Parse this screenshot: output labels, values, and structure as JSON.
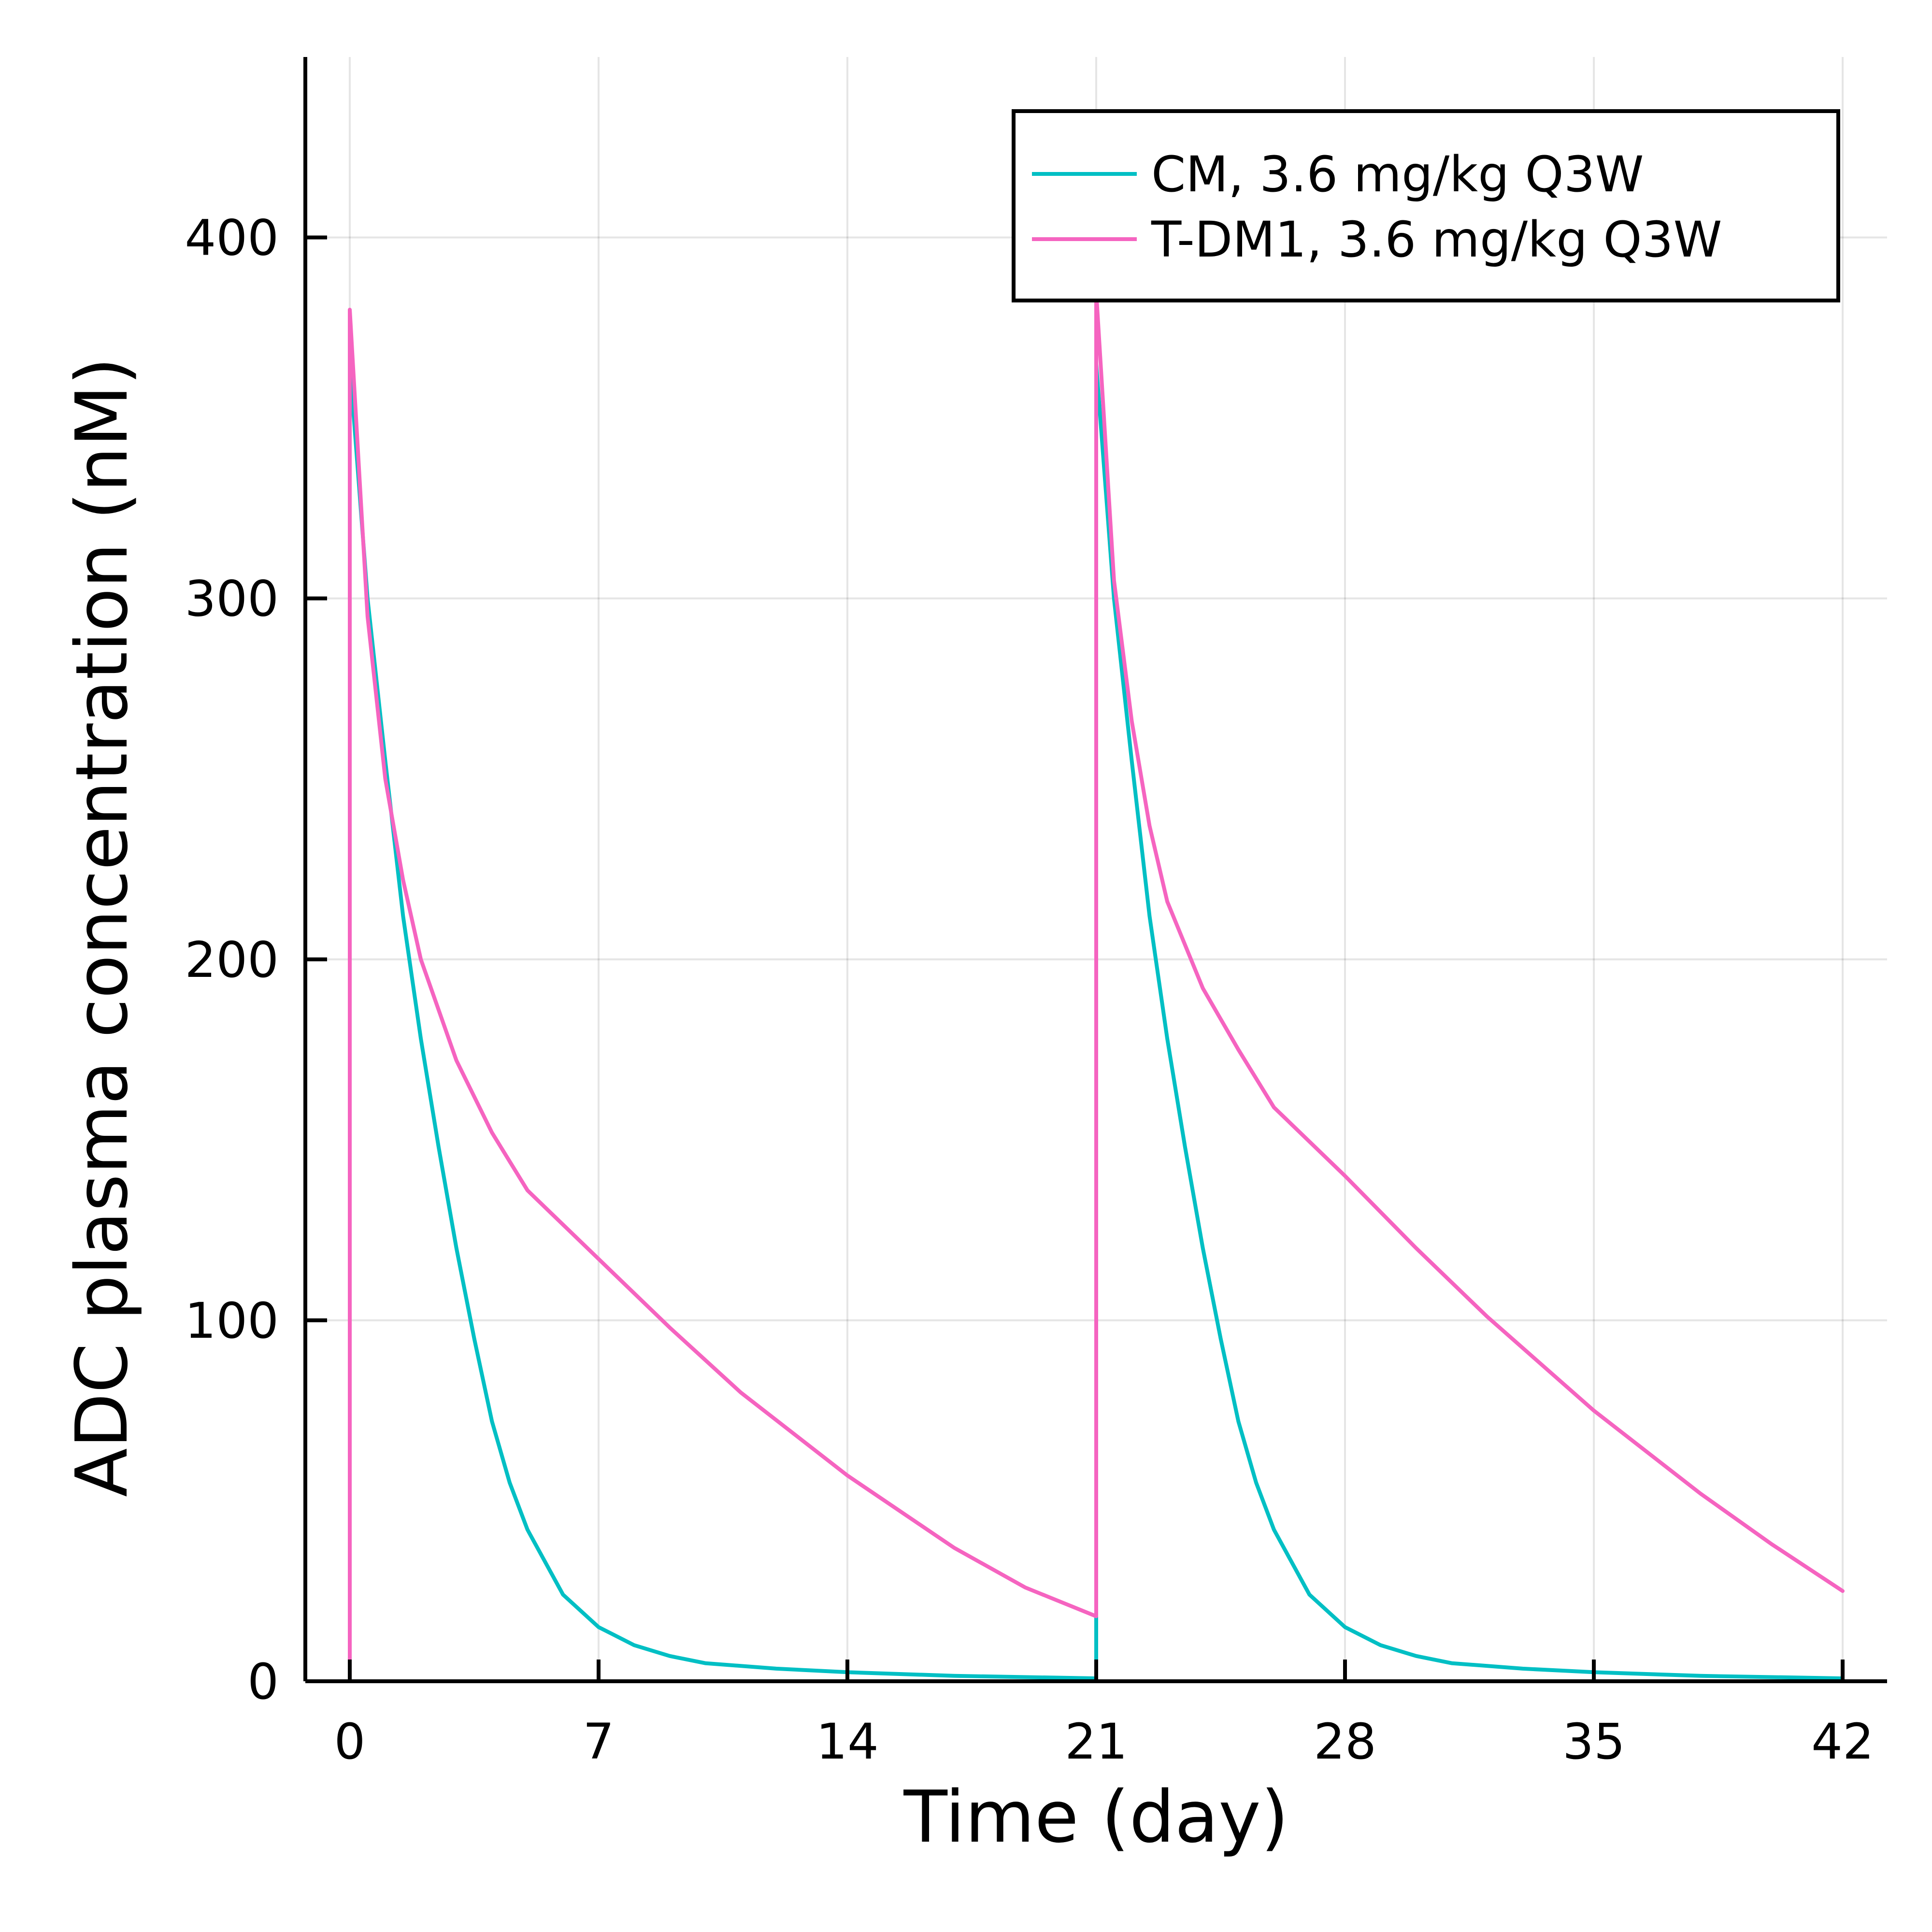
{
  "chart_data": {
    "type": "line",
    "xlabel": "Time (day)",
    "ylabel": "ADC plasma concentration (nM)",
    "xlim": [
      -1.25,
      43.25
    ],
    "ylim": [
      0,
      450
    ],
    "xticks": [
      0,
      7,
      14,
      21,
      28,
      35,
      42
    ],
    "yticks": [
      0,
      100,
      200,
      300,
      400
    ],
    "grid": true,
    "legend_position": "top-right",
    "series": [
      {
        "name": "CM, 3.6 mg/kg Q3W",
        "color": "#00bfc4",
        "points": [
          [
            0,
            0
          ],
          [
            0,
            365
          ],
          [
            0.5,
            300
          ],
          [
            1,
            255
          ],
          [
            1.5,
            212
          ],
          [
            2,
            178
          ],
          [
            2.5,
            148
          ],
          [
            3,
            120
          ],
          [
            3.5,
            95
          ],
          [
            4,
            72
          ],
          [
            4.5,
            55
          ],
          [
            5,
            42
          ],
          [
            6,
            24
          ],
          [
            7,
            15
          ],
          [
            8,
            10
          ],
          [
            9,
            7
          ],
          [
            10,
            5
          ],
          [
            12,
            3.5
          ],
          [
            14,
            2.5
          ],
          [
            17,
            1.5
          ],
          [
            21,
            0.8
          ],
          [
            21,
            17
          ],
          [
            21,
            365
          ],
          [
            21.5,
            300
          ],
          [
            22,
            255
          ],
          [
            22.5,
            212
          ],
          [
            23,
            178
          ],
          [
            23.5,
            148
          ],
          [
            24,
            120
          ],
          [
            24.5,
            95
          ],
          [
            25,
            72
          ],
          [
            25.5,
            55
          ],
          [
            26,
            42
          ],
          [
            27,
            24
          ],
          [
            28,
            15
          ],
          [
            29,
            10
          ],
          [
            30,
            7
          ],
          [
            31,
            5
          ],
          [
            33,
            3.5
          ],
          [
            35,
            2.5
          ],
          [
            38,
            1.5
          ],
          [
            42,
            0.8
          ]
        ]
      },
      {
        "name": "T-DM1, 3.6 mg/kg Q3W",
        "color": "#f564c0",
        "points": [
          [
            0,
            0
          ],
          [
            0,
            380
          ],
          [
            0.5,
            295
          ],
          [
            1,
            250
          ],
          [
            1.5,
            222
          ],
          [
            2,
            200
          ],
          [
            3,
            172
          ],
          [
            4,
            152
          ],
          [
            5,
            136
          ],
          [
            7,
            117
          ],
          [
            9,
            98
          ],
          [
            11,
            80
          ],
          [
            14,
            57
          ],
          [
            17,
            37
          ],
          [
            19,
            26
          ],
          [
            21,
            18
          ],
          [
            21,
            385
          ],
          [
            21.5,
            305
          ],
          [
            22,
            266
          ],
          [
            22.5,
            237
          ],
          [
            23,
            216
          ],
          [
            24,
            192
          ],
          [
            25,
            175
          ],
          [
            26,
            159
          ],
          [
            28,
            140
          ],
          [
            30,
            120
          ],
          [
            32,
            101
          ],
          [
            35,
            75
          ],
          [
            38,
            52
          ],
          [
            40,
            38
          ],
          [
            42,
            25
          ]
        ]
      }
    ]
  }
}
